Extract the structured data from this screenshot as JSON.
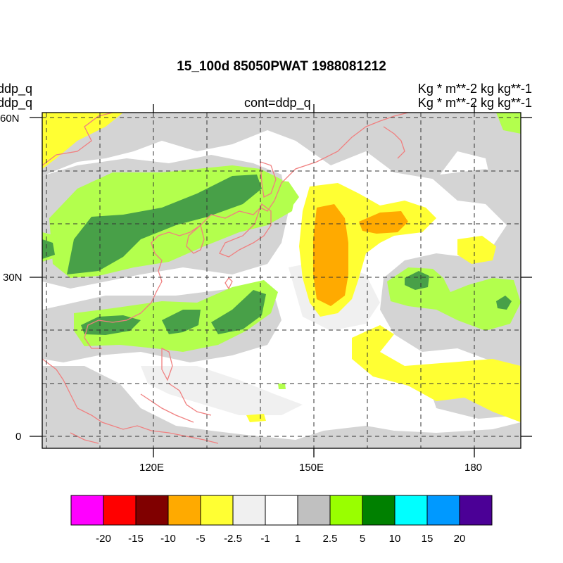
{
  "title": "15_100d 85050PWAT  1988081212",
  "left_labels": [
    "ddp_q",
    "ddp_q"
  ],
  "center_label": "cont=ddp_q",
  "right_labels": [
    "Kg  * m**-2 kg kg**-1",
    "Kg  * m**-2 kg kg**-1"
  ],
  "lat_ticks": [
    "60N",
    "30N",
    "0"
  ],
  "lon_ticks": [
    "120E",
    "150E",
    "180"
  ],
  "colorbar": {
    "colors": [
      "#ff00ff",
      "#ff0000",
      "#800000",
      "#ffaa00",
      "#ffff33",
      "#f0f0f0",
      "#ffffff",
      "#c0c0c0",
      "#99ff00",
      "#008000",
      "#00ffff",
      "#0099ff",
      "#4b0096"
    ],
    "labels": [
      "-20",
      "-15",
      "-10",
      "-5",
      "-2.5",
      "-1",
      "1",
      "2.5",
      "5",
      "10",
      "15",
      "20"
    ]
  },
  "map": {
    "lon_range": [
      100,
      190
    ],
    "lat_range": [
      -2,
      60
    ],
    "coastline_color": "#f08080"
  }
}
